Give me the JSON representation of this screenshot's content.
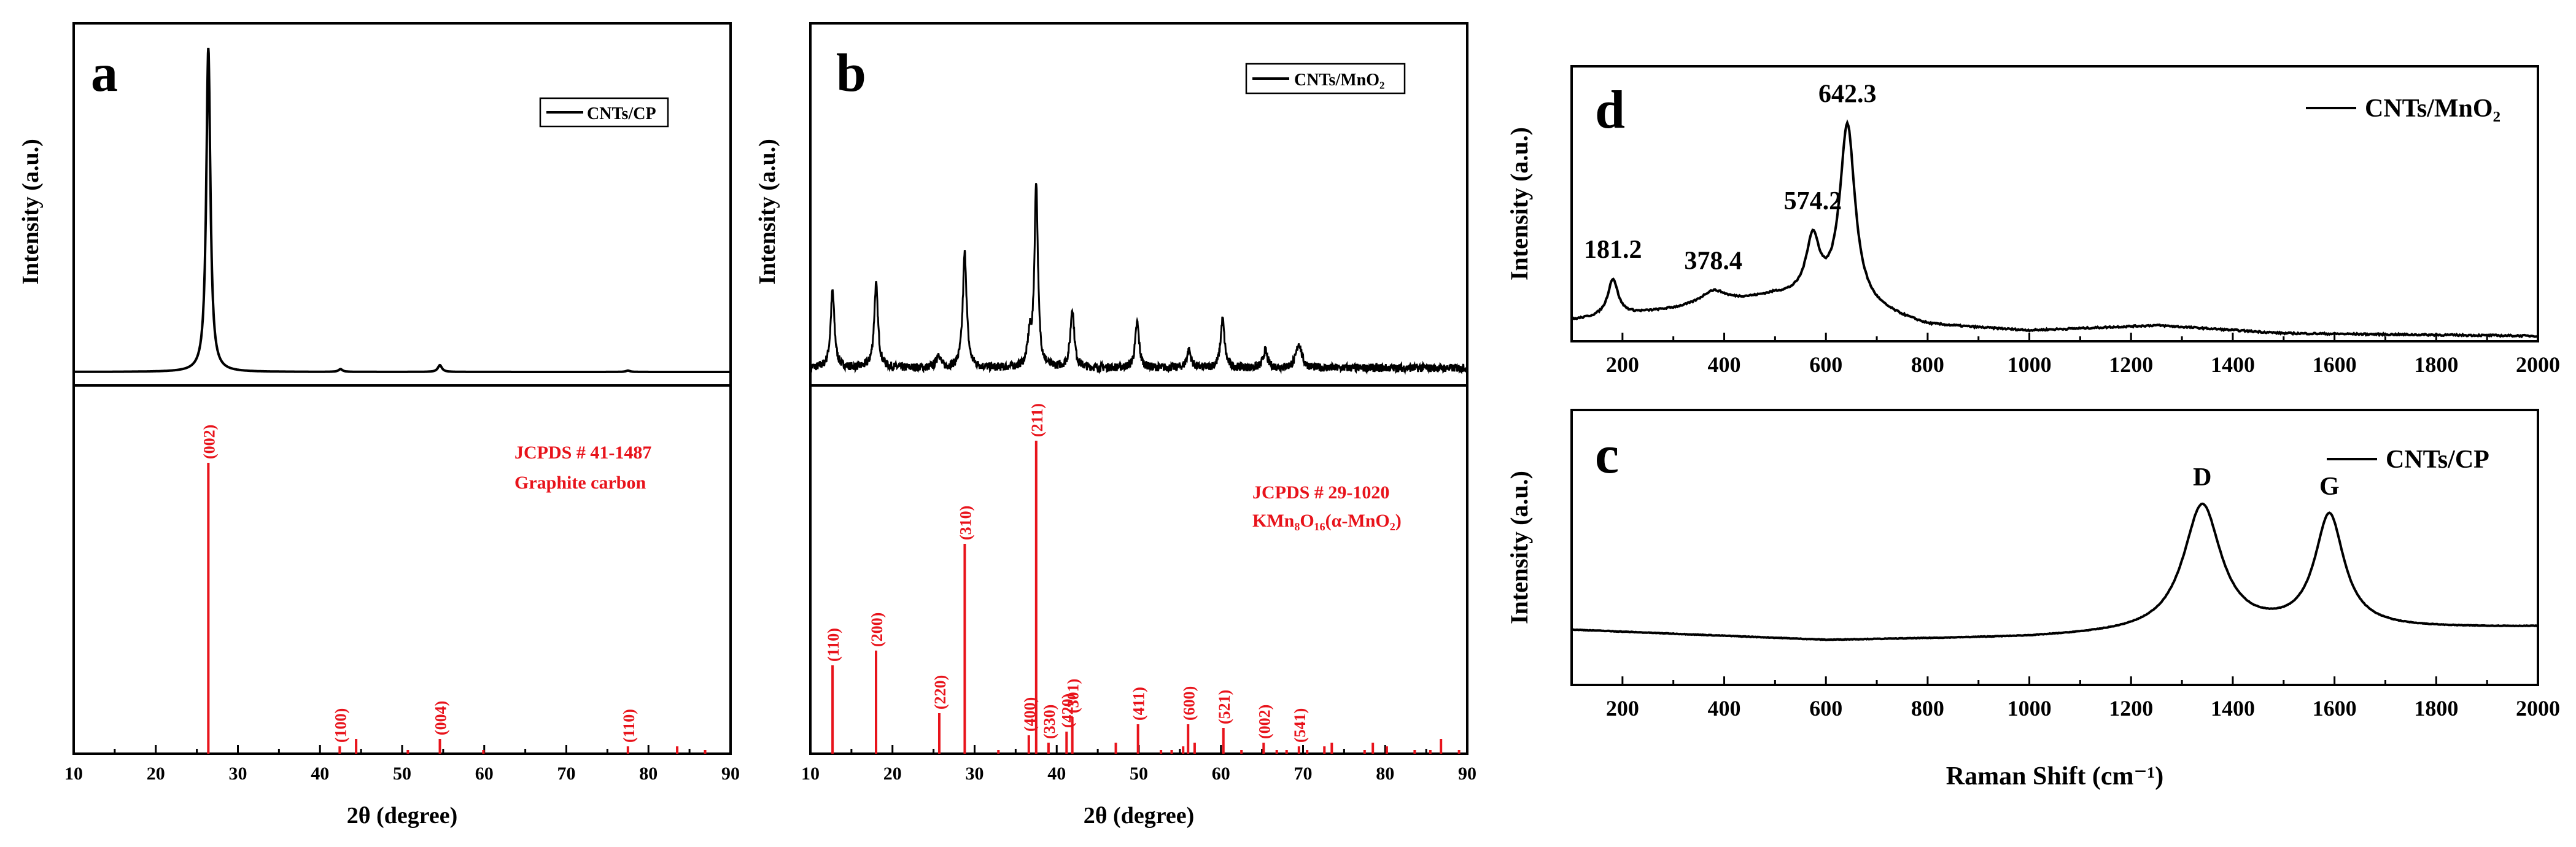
{
  "chart_data": [
    {
      "id": "a",
      "type": "line",
      "panel_label": "a",
      "xlabel": "2θ (degree)",
      "ylabel": "Intensity (a.u.)",
      "xlim": [
        10,
        90
      ],
      "x_ticks": [
        "10",
        "20",
        "30",
        "40",
        "50",
        "60",
        "70",
        "80",
        "90"
      ],
      "legend": "CNTs/CP",
      "baseline": 0.04,
      "peaks": [
        {
          "x": 26.4,
          "height": 0.96,
          "width": 0.3
        },
        {
          "x": 42.5,
          "height": 0.008,
          "width": 0.3
        },
        {
          "x": 54.6,
          "height": 0.02,
          "width": 0.3
        },
        {
          "x": 77.5,
          "height": 0.004,
          "width": 0.3
        }
      ]
    },
    {
      "id": "a_ref",
      "type": "bar",
      "xlim": [
        10,
        90
      ],
      "reference_label_line1": "JCPDS # 41-1487",
      "reference_label_line2": "Graphite carbon",
      "sticks": [
        {
          "x": 26.4,
          "h": 0.79,
          "label": "(002)"
        },
        {
          "x": 42.4,
          "h": 0.02,
          "label": "(100)"
        },
        {
          "x": 44.4,
          "h": 0.04,
          "label": ""
        },
        {
          "x": 50.7,
          "h": 0.01,
          "label": ""
        },
        {
          "x": 54.6,
          "h": 0.04,
          "label": "(004)"
        },
        {
          "x": 59.9,
          "h": 0.01,
          "label": ""
        },
        {
          "x": 77.5,
          "h": 0.02,
          "label": "(110)"
        },
        {
          "x": 83.5,
          "h": 0.02,
          "label": ""
        },
        {
          "x": 86.9,
          "h": 0.01,
          "label": ""
        }
      ]
    },
    {
      "id": "b",
      "type": "line",
      "panel_label": "b",
      "xlabel": "2θ (degree)",
      "ylabel": "Intensity (a.u.)",
      "xlim": [
        10,
        90
      ],
      "x_ticks": [
        "10",
        "20",
        "30",
        "40",
        "50",
        "60",
        "70",
        "80",
        "90"
      ],
      "legend": "CNTs/MnO₂",
      "baseline": 0.05,
      "noise": 0.012,
      "peaks": [
        {
          "x": 12.7,
          "height": 0.22,
          "width": 0.28
        },
        {
          "x": 18.0,
          "height": 0.24,
          "width": 0.28
        },
        {
          "x": 25.6,
          "height": 0.04,
          "width": 0.28
        },
        {
          "x": 28.8,
          "height": 0.33,
          "width": 0.28
        },
        {
          "x": 36.7,
          "height": 0.08,
          "width": 0.28
        },
        {
          "x": 37.5,
          "height": 0.53,
          "width": 0.25
        },
        {
          "x": 41.9,
          "height": 0.17,
          "width": 0.28
        },
        {
          "x": 49.8,
          "height": 0.13,
          "width": 0.28
        },
        {
          "x": 56.1,
          "height": 0.05,
          "width": 0.3
        },
        {
          "x": 60.2,
          "height": 0.14,
          "width": 0.28
        },
        {
          "x": 65.4,
          "height": 0.05,
          "width": 0.3
        },
        {
          "x": 69.5,
          "height": 0.07,
          "width": 0.4
        }
      ]
    },
    {
      "id": "b_ref",
      "type": "bar",
      "xlim": [
        10,
        90
      ],
      "reference_label_line1": "JCPDS # 29-1020",
      "reference_label_line2": "KMn₈O₁₆(α-MnO₂)",
      "sticks": [
        {
          "x": 12.7,
          "h": 0.24,
          "label": "(110)"
        },
        {
          "x": 18.0,
          "h": 0.28,
          "label": "(200)"
        },
        {
          "x": 25.7,
          "h": 0.11,
          "label": "(220)"
        },
        {
          "x": 28.8,
          "h": 0.57,
          "label": "(310)"
        },
        {
          "x": 32.9,
          "h": 0.01,
          "label": ""
        },
        {
          "x": 36.6,
          "h": 0.05,
          "label": "(400)"
        },
        {
          "x": 37.5,
          "h": 0.85,
          "label": "(211)"
        },
        {
          "x": 39.0,
          "h": 0.03,
          "label": "(330)"
        },
        {
          "x": 41.2,
          "h": 0.06,
          "label": "(420)"
        },
        {
          "x": 41.9,
          "h": 0.1,
          "label": "(301)"
        },
        {
          "x": 47.2,
          "h": 0.03,
          "label": ""
        },
        {
          "x": 49.9,
          "h": 0.08,
          "label": "(411)"
        },
        {
          "x": 52.7,
          "h": 0.01,
          "label": ""
        },
        {
          "x": 54.0,
          "h": 0.01,
          "label": ""
        },
        {
          "x": 55.4,
          "h": 0.02,
          "label": ""
        },
        {
          "x": 56.0,
          "h": 0.08,
          "label": "(600)"
        },
        {
          "x": 56.8,
          "h": 0.03,
          "label": ""
        },
        {
          "x": 60.3,
          "h": 0.07,
          "label": "(521)"
        },
        {
          "x": 62.5,
          "h": 0.01,
          "label": ""
        },
        {
          "x": 65.2,
          "h": 0.03,
          "label": "(002)"
        },
        {
          "x": 66.8,
          "h": 0.01,
          "label": ""
        },
        {
          "x": 68.0,
          "h": 0.01,
          "label": ""
        },
        {
          "x": 69.5,
          "h": 0.02,
          "label": "(541)"
        },
        {
          "x": 70.5,
          "h": 0.01,
          "label": ""
        },
        {
          "x": 72.6,
          "h": 0.02,
          "label": ""
        },
        {
          "x": 73.5,
          "h": 0.03,
          "label": ""
        },
        {
          "x": 77.5,
          "h": 0.01,
          "label": ""
        },
        {
          "x": 78.5,
          "h": 0.03,
          "label": ""
        },
        {
          "x": 80.2,
          "h": 0.02,
          "label": ""
        },
        {
          "x": 83.6,
          "h": 0.01,
          "label": ""
        },
        {
          "x": 85.5,
          "h": 0.01,
          "label": ""
        },
        {
          "x": 86.8,
          "h": 0.04,
          "label": ""
        },
        {
          "x": 89.0,
          "h": 0.01,
          "label": ""
        }
      ]
    },
    {
      "id": "d",
      "type": "line",
      "panel_label": "d",
      "ylabel": "Intensity (a.u.)",
      "xlim": [
        100,
        2000
      ],
      "x_ticks": [
        "200",
        "400",
        "600",
        "800",
        "1000",
        "1200",
        "1400",
        "1600",
        "1800",
        "2000"
      ],
      "legend": "CNTs/MnO₂",
      "annotations": [
        "181.2",
        "378.4",
        "574.2",
        "642.3"
      ],
      "annotation_x": [
        181.2,
        378.4,
        574.2,
        642.3
      ],
      "baseline_points": [
        [
          100,
          0.08
        ],
        [
          300,
          0.12
        ],
        [
          500,
          0.17
        ],
        [
          620,
          0.15
        ],
        [
          800,
          0.06
        ],
        [
          1000,
          0.04
        ],
        [
          1250,
          0.06
        ],
        [
          1500,
          0.03
        ],
        [
          2000,
          0.02
        ]
      ],
      "peaks": [
        {
          "x": 181.2,
          "height": 0.14,
          "width": 12
        },
        {
          "x": 378.4,
          "height": 0.05,
          "width": 30
        },
        {
          "x": 574.2,
          "height": 0.22,
          "width": 16
        },
        {
          "x": 642.3,
          "height": 0.68,
          "width": 18
        }
      ]
    },
    {
      "id": "c",
      "type": "line",
      "panel_label": "c",
      "xlabel": "Raman Shift (cm⁻¹)",
      "ylabel": "Intensity (a.u.)",
      "xlim": [
        100,
        2000
      ],
      "x_ticks": [
        "200",
        "400",
        "600",
        "800",
        "1000",
        "1200",
        "1400",
        "1600",
        "1800",
        "2000"
      ],
      "legend": "CNTs/CP",
      "annotations": [
        "D",
        "G"
      ],
      "annotation_x": [
        1340,
        1590
      ],
      "baseline_points": [
        [
          100,
          0.21
        ],
        [
          600,
          0.17
        ],
        [
          1000,
          0.18
        ],
        [
          1300,
          0.2
        ],
        [
          1600,
          0.21
        ],
        [
          2000,
          0.22
        ]
      ],
      "peaks": [
        {
          "x": 1340,
          "height": 0.48,
          "width": 45
        },
        {
          "x": 1590,
          "height": 0.43,
          "width": 35
        }
      ]
    }
  ]
}
